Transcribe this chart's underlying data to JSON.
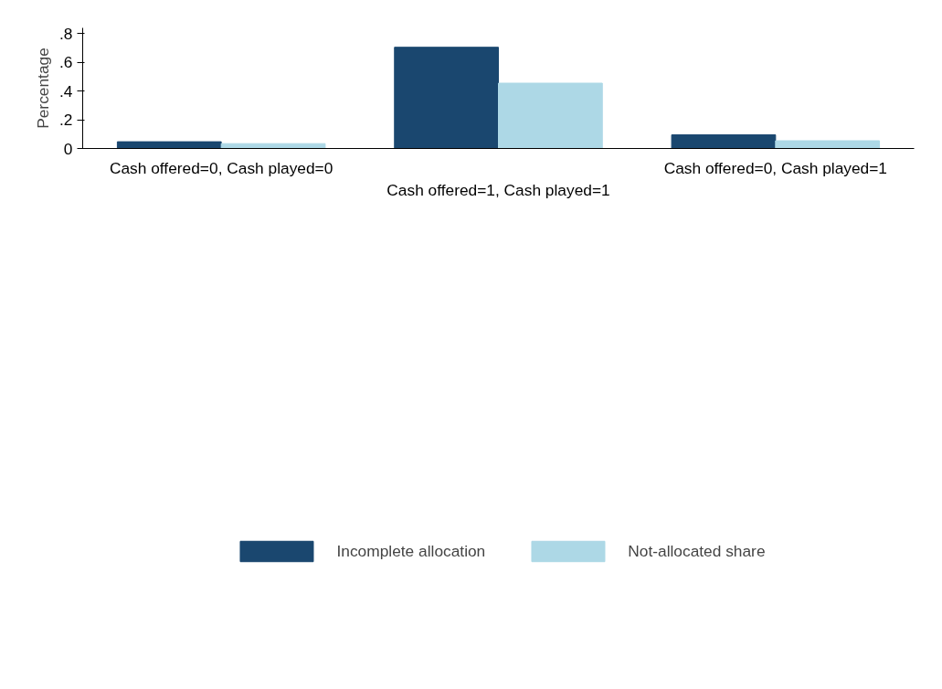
{
  "chart_data": {
    "type": "bar",
    "ylabel": "Percentage",
    "categories": [
      "Cash offered=0, Cash played=0",
      "Cash offered=1, Cash played=1",
      "Cash offered=0, Cash played=1"
    ],
    "series": [
      {
        "name": "Incomplete allocation",
        "color": "#1a476f",
        "values": [
          0.047,
          0.705,
          0.095
        ]
      },
      {
        "name": "Not-allocated share",
        "color": "#add8e6",
        "values": [
          0.034,
          0.455,
          0.054
        ]
      }
    ],
    "ylim": [
      0,
      0.84
    ],
    "yticks": [
      0,
      {
        "value": 0.2,
        "label": ".2"
      },
      {
        "value": 0.4,
        "label": ".4"
      },
      {
        "value": 0.6,
        "label": ".6"
      },
      {
        "value": 0.8,
        "label": ".8"
      }
    ],
    "grid": false,
    "legend": "bottom"
  }
}
